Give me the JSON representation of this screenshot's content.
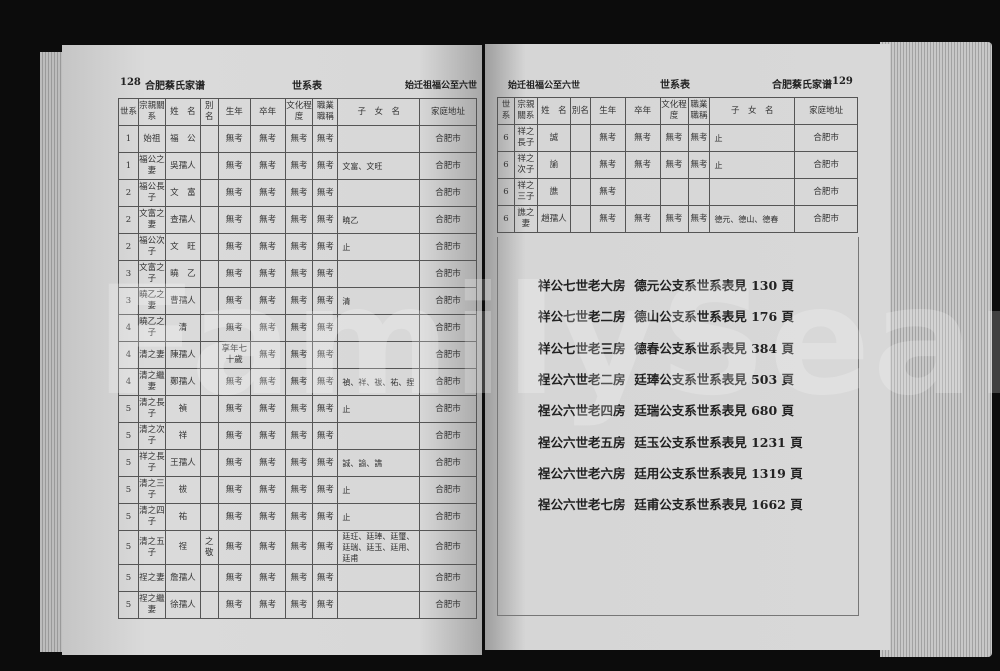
{
  "watermark": "FamilySearch",
  "left_page": {
    "page_number": "128",
    "book_title": "合肥蔡氏家谱",
    "section": "世系表",
    "range": "始迁祖福公至六世",
    "columns": [
      "世系",
      "宗親關系",
      "姓　名",
      "別名",
      "生年",
      "卒年",
      "文化程度",
      "職業職稱",
      "子　女　名",
      "家庭地址"
    ],
    "rows": [
      [
        "1",
        "始祖",
        "福　公",
        "",
        "無考",
        "無考",
        "無考",
        "無考",
        "",
        "合肥市"
      ],
      [
        "1",
        "福公之妻",
        "吳孺人",
        "",
        "無考",
        "無考",
        "無考",
        "無考",
        "文富、文旺",
        "合肥市"
      ],
      [
        "2",
        "福公長子",
        "文　富",
        "",
        "無考",
        "無考",
        "無考",
        "無考",
        "",
        "合肥市"
      ],
      [
        "2",
        "文富之妻",
        "查孺人",
        "",
        "無考",
        "無考",
        "無考",
        "無考",
        "曉乙",
        "合肥市"
      ],
      [
        "2",
        "福公次子",
        "文　旺",
        "",
        "無考",
        "無考",
        "無考",
        "無考",
        "止",
        "合肥市"
      ],
      [
        "3",
        "文富之子",
        "曉　乙",
        "",
        "無考",
        "無考",
        "無考",
        "無考",
        "",
        "合肥市"
      ],
      [
        "3",
        "曉乙之妻",
        "曹孺人",
        "",
        "無考",
        "無考",
        "無考",
        "無考",
        "清",
        "合肥市"
      ],
      [
        "4",
        "曉乙之子",
        "清",
        "",
        "無考",
        "無考",
        "無考",
        "無考",
        "",
        "合肥市"
      ],
      [
        "4",
        "清之妻",
        "陳孺人",
        "",
        "享年七十歲",
        "無考",
        "無考",
        "無考",
        "",
        "合肥市"
      ],
      [
        "4",
        "清之繼妻",
        "鄭孺人",
        "",
        "無考",
        "無考",
        "無考",
        "無考",
        "禎、祥、祓、祐、捏",
        "合肥市"
      ],
      [
        "5",
        "清之長子",
        "禎",
        "",
        "無考",
        "無考",
        "無考",
        "無考",
        "止",
        "合肥市"
      ],
      [
        "5",
        "清之次子",
        "祥",
        "",
        "無考",
        "無考",
        "無考",
        "無考",
        "",
        "合肥市"
      ],
      [
        "5",
        "祥之長子",
        "王孺人",
        "",
        "無考",
        "無考",
        "無考",
        "無考",
        "誠、諭、譙",
        "合肥市"
      ],
      [
        "5",
        "清之三子",
        "祓",
        "",
        "無考",
        "無考",
        "無考",
        "無考",
        "止",
        "合肥市"
      ],
      [
        "5",
        "清之四子",
        "祐",
        "",
        "無考",
        "無考",
        "無考",
        "無考",
        "止",
        "合肥市"
      ],
      [
        "5",
        "清之五子",
        "䄇",
        "之敬",
        "無考",
        "無考",
        "無考",
        "無考",
        "廷玨、廷琫、廷璽、廷瑞、廷玉、廷用、廷甫",
        "合肥市"
      ],
      [
        "5",
        "䄇之妻",
        "詹孺人",
        "",
        "無考",
        "無考",
        "無考",
        "無考",
        "",
        "合肥市"
      ],
      [
        "5",
        "䄇之繼妻",
        "徐孺人",
        "",
        "無考",
        "無考",
        "無考",
        "無考",
        "",
        "合肥市"
      ]
    ]
  },
  "right_page": {
    "page_number": "129",
    "book_title": "合肥蔡氏家谱",
    "section": "世系表",
    "range": "始迁祖福公至六世",
    "columns": [
      "世系",
      "宗親關系",
      "姓　名",
      "別名",
      "生年",
      "卒年",
      "文化程度",
      "職業職稱",
      "子　女　名",
      "家庭地址"
    ],
    "rows": [
      [
        "6",
        "祥之長子",
        "誠",
        "",
        "無考",
        "無考",
        "無考",
        "無考",
        "止",
        "合肥市"
      ],
      [
        "6",
        "祥之次子",
        "諭",
        "",
        "無考",
        "無考",
        "無考",
        "無考",
        "止",
        "合肥市"
      ],
      [
        "6",
        "祥之三子",
        "譙",
        "",
        "無考",
        "",
        "",
        "",
        "",
        "合肥市"
      ],
      [
        "6",
        "譙之妻",
        "趙孺人",
        "",
        "無考",
        "無考",
        "無考",
        "無考",
        "德元、德山、德春",
        "合肥市"
      ]
    ],
    "cross_refs": [
      {
        "branch": "祥公七世老大房",
        "text": "德元公支系世系表見 130 頁"
      },
      {
        "branch": "祥公七世老二房",
        "text": "德山公支系世系表見 176 頁"
      },
      {
        "branch": "祥公七世老三房",
        "text": "德春公支系世系表見 384 頁"
      },
      {
        "branch": "䄇公六世老二房",
        "text": "廷琫公支系世系表見 503 頁"
      },
      {
        "branch": "䄇公六世老四房",
        "text": "廷瑞公支系世系表見 680 頁"
      },
      {
        "branch": "䄇公六世老五房",
        "text": "廷玉公支系世系表見 1231 頁"
      },
      {
        "branch": "䄇公六世老六房",
        "text": "廷用公支系世系表見 1319 頁"
      },
      {
        "branch": "䄇公六世老七房",
        "text": "廷甫公支系世系表見 1662 頁"
      }
    ]
  }
}
